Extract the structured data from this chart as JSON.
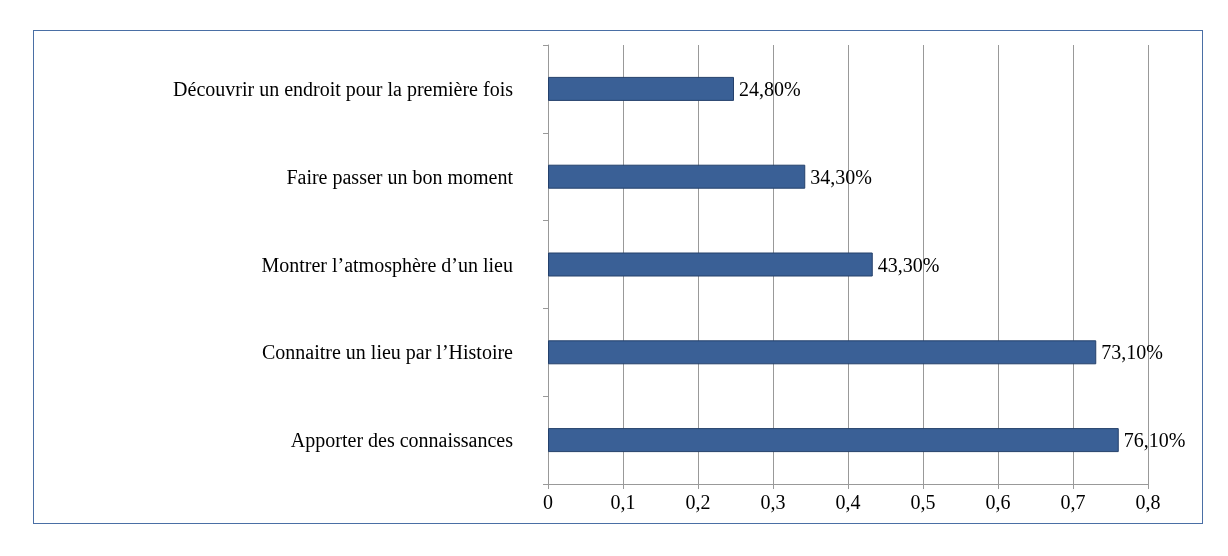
{
  "chart_data": {
    "type": "bar",
    "orientation": "horizontal",
    "categories": [
      "Découvrir un endroit pour la première fois",
      "Faire passer un bon moment",
      "Montrer l’atmosphère d’un lieu",
      "Connaitre un lieu par l’Histoire",
      "Apporter des connaissances"
    ],
    "values": [
      0.248,
      0.343,
      0.433,
      0.731,
      0.761
    ],
    "value_labels": [
      "24,80%",
      "34,30%",
      "43,30%",
      "73,10%",
      "76,10%"
    ],
    "color": "#3a6096",
    "xlim": [
      0,
      0.8
    ],
    "xticks": [
      0,
      {
        "value": 0.1,
        "label": "0,1"
      },
      {
        "value": 0.2,
        "label": "0,2"
      },
      {
        "value": 0.3,
        "label": "0,3"
      },
      {
        "value": 0.4,
        "label": "0,4"
      },
      {
        "value": 0.5,
        "label": "0,5"
      },
      {
        "value": 0.6,
        "label": "0,6"
      },
      {
        "value": 0.7,
        "label": "0,7"
      },
      {
        "value": 0.8,
        "label": "0,8"
      }
    ],
    "grid": "x"
  }
}
